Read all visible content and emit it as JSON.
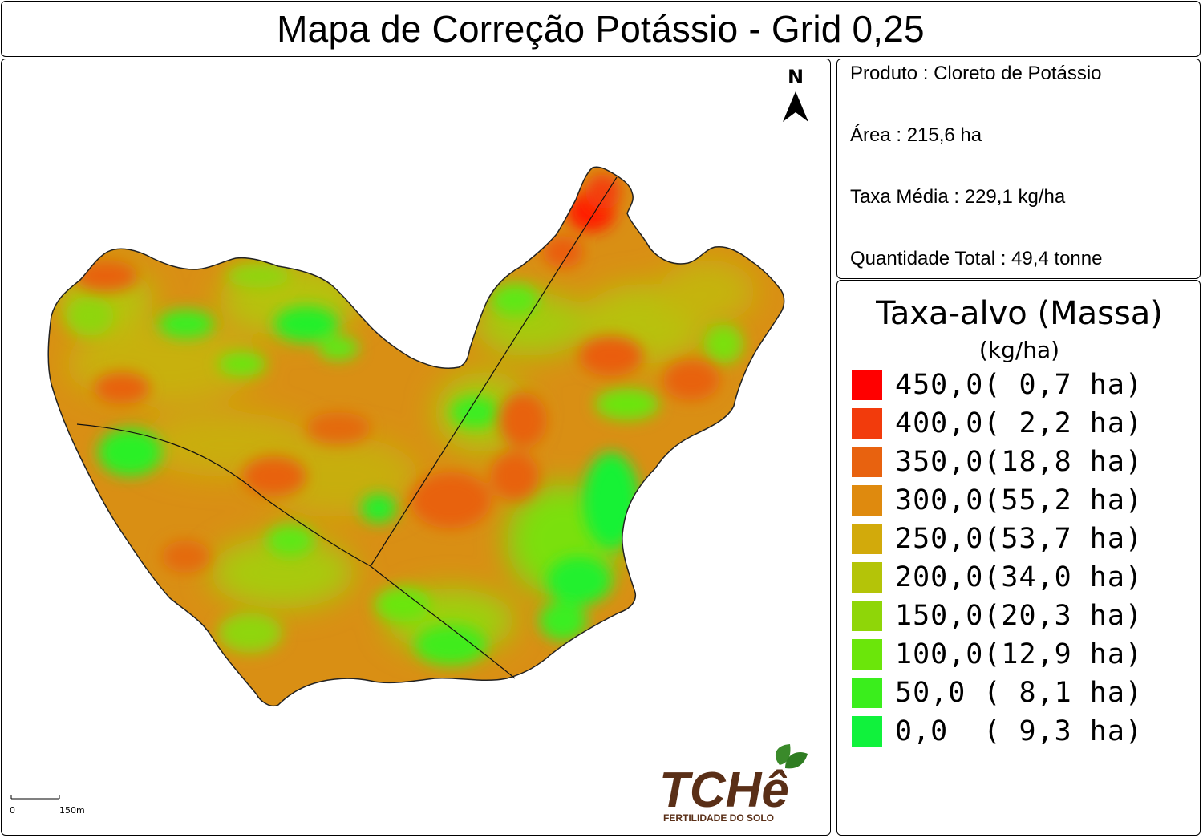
{
  "title": "Mapa de Correção Potássio - Grid 0,25",
  "info": {
    "produto": "Produto : Cloreto de Potássio",
    "area": "Área : 215,6 ha",
    "taxa_media": "Taxa Média : 229,1 kg/ha",
    "quantidade_total": "Quantidade Total : 49,4 tonne"
  },
  "legend": {
    "title": "Taxa-alvo (Massa)",
    "unit": "(kg/ha)",
    "items": [
      {
        "label": "450,0( 0,7 ha)",
        "color": "#ff0000"
      },
      {
        "label": "400,0( 2,2 ha)",
        "color": "#f23b0c"
      },
      {
        "label": "350,0(18,8 ha)",
        "color": "#e8620f"
      },
      {
        "label": "300,0(55,2 ha)",
        "color": "#df8a0e"
      },
      {
        "label": "250,0(53,7 ha)",
        "color": "#d2aa0b"
      },
      {
        "label": "200,0(34,0 ha)",
        "color": "#b4c408"
      },
      {
        "label": "150,0(20,3 ha)",
        "color": "#8fd608"
      },
      {
        "label": "100,0(12,9 ha)",
        "color": "#6be60a"
      },
      {
        "label": "50,0 ( 8,1 ha)",
        "color": "#3aee1c"
      },
      {
        "label": "0,0  ( 9,3 ha)",
        "color": "#10f23c"
      }
    ]
  },
  "north_label": "N",
  "scale": {
    "start": "0",
    "end": "150m"
  },
  "logo": {
    "name": "TCHê",
    "subtitle": "FERTILIDADE DO SOLO"
  }
}
